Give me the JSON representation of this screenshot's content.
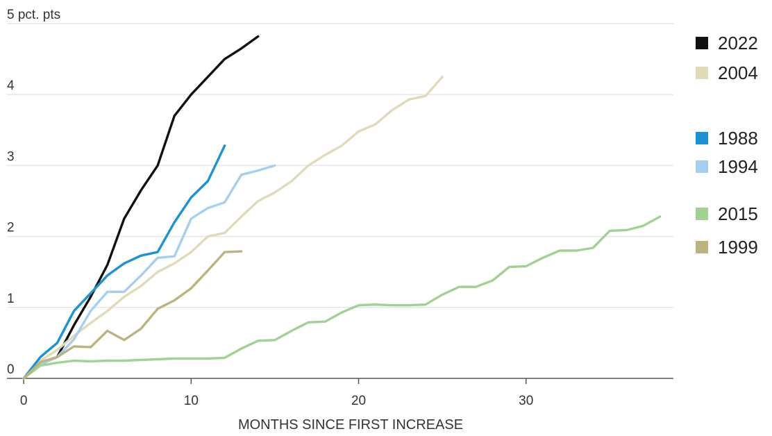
{
  "chart_data": {
    "type": "line",
    "title": "",
    "xlabel": "MONTHS SINCE FIRST INCREASE",
    "ylabel": "",
    "y_unit_label": "5 pct. pts",
    "xlim": [
      -1,
      38.8
    ],
    "ylim": [
      0,
      5
    ],
    "x_ticks": [
      0,
      10,
      20,
      30
    ],
    "x_tick_labels": [
      "0",
      "10",
      "20",
      "30"
    ],
    "y_ticks": [
      0,
      1,
      2,
      3,
      4,
      5
    ],
    "y_tick_labels": [
      "0",
      "1",
      "2",
      "3",
      "4",
      "5 pct. pts"
    ],
    "grid": "horizontal",
    "legend_position": "right",
    "series": [
      {
        "name": "2022",
        "color": "#111111",
        "x": [
          0,
          1,
          2,
          3,
          4,
          5,
          6,
          7,
          8,
          9,
          10,
          11,
          12,
          13,
          14
        ],
        "y": [
          0,
          0.2,
          0.3,
          0.75,
          1.15,
          1.6,
          2.25,
          2.65,
          3.0,
          3.7,
          4.0,
          4.25,
          4.5,
          4.65,
          4.82
        ]
      },
      {
        "name": "2004",
        "color": "#e0dab6",
        "x": [
          0,
          1,
          2,
          3,
          4,
          5,
          6,
          7,
          8,
          9,
          10,
          11,
          12,
          13,
          14,
          15,
          16,
          17,
          18,
          19,
          20,
          21,
          22,
          23,
          24,
          25
        ],
        "y": [
          0,
          0.25,
          0.4,
          0.6,
          0.78,
          0.95,
          1.15,
          1.3,
          1.5,
          1.62,
          1.78,
          2.0,
          2.05,
          2.28,
          2.5,
          2.62,
          2.78,
          3.0,
          3.15,
          3.28,
          3.48,
          3.58,
          3.78,
          3.93,
          3.98,
          4.25
        ]
      },
      {
        "name": "1988",
        "color": "#1a92d8",
        "x": [
          0,
          1,
          2,
          3,
          4,
          5,
          6,
          7,
          8,
          9,
          10,
          11,
          12
        ],
        "y": [
          0,
          0.3,
          0.5,
          0.95,
          1.2,
          1.45,
          1.62,
          1.73,
          1.78,
          2.2,
          2.55,
          2.78,
          3.28
        ]
      },
      {
        "name": "1994",
        "color": "#a4cff0",
        "x": [
          0,
          1,
          2,
          3,
          4,
          5,
          6,
          7,
          8,
          9,
          10,
          11,
          12,
          13,
          14,
          15
        ],
        "y": [
          0,
          0.2,
          0.3,
          0.55,
          0.95,
          1.22,
          1.22,
          1.45,
          1.7,
          1.72,
          2.25,
          2.4,
          2.48,
          2.87,
          2.93,
          3.0
        ]
      },
      {
        "name": "2015",
        "color": "#a0d392",
        "x": [
          0,
          1,
          2,
          3,
          4,
          5,
          6,
          7,
          8,
          9,
          10,
          11,
          12,
          13,
          14,
          15,
          16,
          17,
          18,
          19,
          20,
          21,
          22,
          23,
          24,
          25,
          26,
          27,
          28,
          29,
          30,
          31,
          32,
          33,
          34,
          35,
          36,
          37,
          38
        ],
        "y": [
          0,
          0.18,
          0.22,
          0.25,
          0.24,
          0.25,
          0.25,
          0.26,
          0.27,
          0.28,
          0.28,
          0.28,
          0.29,
          0.42,
          0.53,
          0.54,
          0.67,
          0.79,
          0.8,
          0.93,
          1.03,
          1.04,
          1.03,
          1.03,
          1.04,
          1.18,
          1.29,
          1.29,
          1.38,
          1.57,
          1.58,
          1.7,
          1.8,
          1.8,
          1.84,
          2.08,
          2.09,
          2.15,
          2.28
        ]
      },
      {
        "name": "1999",
        "color": "#bdb37d",
        "x": [
          0,
          1,
          2,
          3,
          4,
          5,
          6,
          7,
          8,
          9,
          10,
          11,
          12,
          13
        ],
        "y": [
          0,
          0.23,
          0.3,
          0.45,
          0.44,
          0.67,
          0.54,
          0.7,
          0.98,
          1.1,
          1.27,
          1.52,
          1.78,
          1.79
        ]
      }
    ]
  },
  "legend": {
    "items": [
      {
        "name": "2022",
        "color": "#111111"
      },
      {
        "name": "2004",
        "color": "#e0dab6"
      },
      {
        "name": "1988",
        "color": "#1a92d8"
      },
      {
        "name": "1994",
        "color": "#a4cff0"
      },
      {
        "name": "2015",
        "color": "#a0d392"
      },
      {
        "name": "1999",
        "color": "#bdb37d"
      }
    ]
  }
}
